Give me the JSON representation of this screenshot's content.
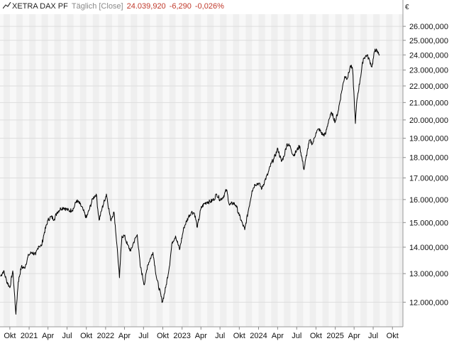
{
  "header": {
    "ticker": "XETRA DAX PF",
    "mode": "Täglich [Close]",
    "price": "24.039,920",
    "change": "-6,290",
    "change_pct": "-0,026%",
    "currency": "€",
    "chart_icon": "line-chart-icon"
  },
  "colors": {
    "band_light": "#f8f8f8",
    "band_dark": "#efefef",
    "grid": "#dddddd",
    "line": "#000000",
    "negative": "#c0392b"
  },
  "chart_data": {
    "type": "line",
    "title": "XETRA DAX PF",
    "xlabel": "",
    "ylabel": "€",
    "y_scale": "log",
    "ylim": [
      11200000,
      26900000
    ],
    "xlim": [
      "2020-08-15",
      "2025-11-20"
    ],
    "y_ticks": [
      {
        "value": 12000000,
        "label": "12.000,000"
      },
      {
        "value": 13000000,
        "label": "13.000,000"
      },
      {
        "value": 14000000,
        "label": "14.000,000"
      },
      {
        "value": 15000000,
        "label": "15.000,000"
      },
      {
        "value": 16000000,
        "label": "16.000,000"
      },
      {
        "value": 17000000,
        "label": "17.000,000"
      },
      {
        "value": 18000000,
        "label": "18.000,000"
      },
      {
        "value": 19000000,
        "label": "19.000,000"
      },
      {
        "value": 20000000,
        "label": "20.000,000"
      },
      {
        "value": 21000000,
        "label": "21.000,000"
      },
      {
        "value": 22000000,
        "label": "22.000,000"
      },
      {
        "value": 23000000,
        "label": "23.000,000"
      },
      {
        "value": 24000000,
        "label": "24.000,000"
      },
      {
        "value": 25000000,
        "label": "25.000,000"
      },
      {
        "value": 26000000,
        "label": "26.000,000"
      }
    ],
    "x_ticks": [
      {
        "date": "2020-10-01",
        "label": "Okt"
      },
      {
        "date": "2021-01-01",
        "label": "2021"
      },
      {
        "date": "2021-04-01",
        "label": "Apr"
      },
      {
        "date": "2021-07-01",
        "label": "Jul"
      },
      {
        "date": "2021-10-01",
        "label": "Okt"
      },
      {
        "date": "2022-01-01",
        "label": "2022"
      },
      {
        "date": "2022-04-01",
        "label": "Apr"
      },
      {
        "date": "2022-07-01",
        "label": "Jul"
      },
      {
        "date": "2022-10-01",
        "label": "Okt"
      },
      {
        "date": "2023-01-01",
        "label": "2023"
      },
      {
        "date": "2023-04-01",
        "label": "Apr"
      },
      {
        "date": "2023-07-01",
        "label": "Jul"
      },
      {
        "date": "2023-10-01",
        "label": "Okt"
      },
      {
        "date": "2024-01-01",
        "label": "2024"
      },
      {
        "date": "2024-04-01",
        "label": "Apr"
      },
      {
        "date": "2024-07-01",
        "label": "Jul"
      },
      {
        "date": "2024-10-01",
        "label": "Okt"
      },
      {
        "date": "2025-01-01",
        "label": "2025"
      },
      {
        "date": "2025-04-01",
        "label": "Apr"
      },
      {
        "date": "2025-07-01",
        "label": "Jul"
      },
      {
        "date": "2025-10-01",
        "label": "Okt"
      }
    ],
    "grid": true,
    "legend": "none",
    "series": [
      {
        "points": [
          [
            "2020-08-17",
            12900000
          ],
          [
            "2020-09-01",
            13100000
          ],
          [
            "2020-09-15",
            12750000
          ],
          [
            "2020-10-01",
            12500000
          ],
          [
            "2020-10-15",
            13100000
          ],
          [
            "2020-10-30",
            11600000
          ],
          [
            "2020-11-10",
            12700000
          ],
          [
            "2020-11-25",
            13250000
          ],
          [
            "2020-12-10",
            13200000
          ],
          [
            "2020-12-30",
            13700000
          ],
          [
            "2021-01-15",
            13800000
          ],
          [
            "2021-02-01",
            13700000
          ],
          [
            "2021-02-15",
            14050000
          ],
          [
            "2021-03-01",
            14050000
          ],
          [
            "2021-03-15",
            14600000
          ],
          [
            "2021-04-01",
            15100000
          ],
          [
            "2021-04-15",
            15250000
          ],
          [
            "2021-05-01",
            15150000
          ],
          [
            "2021-05-15",
            15450000
          ],
          [
            "2021-06-01",
            15600000
          ],
          [
            "2021-06-15",
            15650000
          ],
          [
            "2021-07-01",
            15550000
          ],
          [
            "2021-07-15",
            15500000
          ],
          [
            "2021-08-01",
            15600000
          ],
          [
            "2021-08-15",
            15950000
          ],
          [
            "2021-09-01",
            15800000
          ],
          [
            "2021-09-15",
            15550000
          ],
          [
            "2021-10-01",
            15200000
          ],
          [
            "2021-10-15",
            15550000
          ],
          [
            "2021-11-01",
            16050000
          ],
          [
            "2021-11-17",
            16250000
          ],
          [
            "2021-12-01",
            15100000
          ],
          [
            "2021-12-15",
            15600000
          ],
          [
            "2022-01-05",
            16250000
          ],
          [
            "2022-01-25",
            15100000
          ],
          [
            "2022-02-10",
            15450000
          ],
          [
            "2022-02-24",
            14100000
          ],
          [
            "2022-03-08",
            12850000
          ],
          [
            "2022-03-20",
            14450000
          ],
          [
            "2022-04-01",
            14450000
          ],
          [
            "2022-04-15",
            14100000
          ],
          [
            "2022-05-01",
            13850000
          ],
          [
            "2022-05-15",
            14200000
          ],
          [
            "2022-06-01",
            14500000
          ],
          [
            "2022-06-15",
            13300000
          ],
          [
            "2022-07-05",
            12600000
          ],
          [
            "2022-07-20",
            13300000
          ],
          [
            "2022-08-15",
            13800000
          ],
          [
            "2022-09-01",
            12850000
          ],
          [
            "2022-09-29",
            12000000
          ],
          [
            "2022-10-15",
            12500000
          ],
          [
            "2022-11-01",
            13250000
          ],
          [
            "2022-11-15",
            14200000
          ],
          [
            "2022-12-01",
            14450000
          ],
          [
            "2022-12-20",
            13900000
          ],
          [
            "2023-01-10",
            14800000
          ],
          [
            "2023-02-01",
            15250000
          ],
          [
            "2023-02-15",
            15450000
          ],
          [
            "2023-03-01",
            15400000
          ],
          [
            "2023-03-15",
            14800000
          ],
          [
            "2023-04-01",
            15600000
          ],
          [
            "2023-04-15",
            15800000
          ],
          [
            "2023-05-01",
            15900000
          ],
          [
            "2023-05-15",
            15900000
          ],
          [
            "2023-06-01",
            16000000
          ],
          [
            "2023-06-15",
            16250000
          ],
          [
            "2023-07-01",
            16000000
          ],
          [
            "2023-07-15",
            16100000
          ],
          [
            "2023-08-01",
            16450000
          ],
          [
            "2023-08-15",
            15750000
          ],
          [
            "2023-09-01",
            15850000
          ],
          [
            "2023-09-15",
            15750000
          ],
          [
            "2023-10-01",
            15300000
          ],
          [
            "2023-10-27",
            14700000
          ],
          [
            "2023-11-15",
            15600000
          ],
          [
            "2023-12-01",
            16400000
          ],
          [
            "2023-12-15",
            16700000
          ],
          [
            "2024-01-01",
            16750000
          ],
          [
            "2024-01-17",
            16500000
          ],
          [
            "2024-02-01",
            16900000
          ],
          [
            "2024-02-15",
            17200000
          ],
          [
            "2024-03-01",
            17700000
          ],
          [
            "2024-03-15",
            17950000
          ],
          [
            "2024-04-02",
            18450000
          ],
          [
            "2024-04-19",
            17800000
          ],
          [
            "2024-05-01",
            18050000
          ],
          [
            "2024-05-15",
            18700000
          ],
          [
            "2024-06-01",
            18550000
          ],
          [
            "2024-06-15",
            18100000
          ],
          [
            "2024-07-01",
            18350000
          ],
          [
            "2024-07-15",
            18600000
          ],
          [
            "2024-08-05",
            17400000
          ],
          [
            "2024-08-20",
            18300000
          ],
          [
            "2024-09-01",
            18900000
          ],
          [
            "2024-09-15",
            18700000
          ],
          [
            "2024-10-01",
            19300000
          ],
          [
            "2024-10-15",
            19500000
          ],
          [
            "2024-11-01",
            19200000
          ],
          [
            "2024-11-15",
            19200000
          ],
          [
            "2024-12-01",
            20000000
          ],
          [
            "2024-12-15",
            20400000
          ],
          [
            "2025-01-01",
            19900000
          ],
          [
            "2025-01-15",
            20500000
          ],
          [
            "2025-02-01",
            21700000
          ],
          [
            "2025-02-15",
            22600000
          ],
          [
            "2025-03-01",
            22500000
          ],
          [
            "2025-03-15",
            23300000
          ],
          [
            "2025-03-25",
            23000000
          ],
          [
            "2025-04-07",
            19800000
          ],
          [
            "2025-04-15",
            21200000
          ],
          [
            "2025-05-01",
            22500000
          ],
          [
            "2025-05-15",
            23750000
          ],
          [
            "2025-06-01",
            24000000
          ],
          [
            "2025-06-15",
            23600000
          ],
          [
            "2025-06-25",
            23200000
          ],
          [
            "2025-07-10",
            24400000
          ],
          [
            "2025-07-20",
            24200000
          ],
          [
            "2025-07-31",
            24030000
          ]
        ]
      }
    ]
  }
}
